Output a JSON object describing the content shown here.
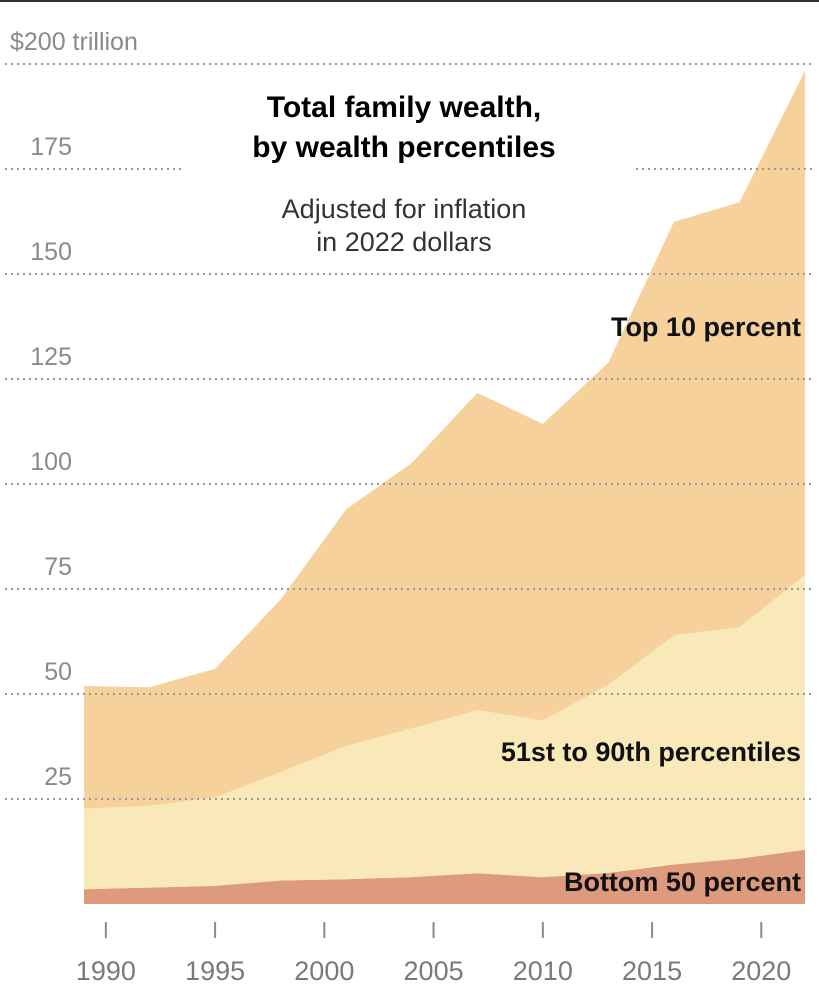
{
  "chart_data": {
    "type": "area",
    "stacked": true,
    "title_lines": [
      "Total family wealth,",
      "by wealth percentiles"
    ],
    "subtitle_lines": [
      "Adjusted for inflation",
      "in 2022 dollars"
    ],
    "y_unit_label": "$200 trillion",
    "ylim": [
      0,
      200
    ],
    "xlim": [
      1989,
      2022
    ],
    "yticks": [
      {
        "value": 200,
        "label": "$200 trillion"
      },
      {
        "value": 175,
        "label": "175"
      },
      {
        "value": 150,
        "label": "150"
      },
      {
        "value": 125,
        "label": "125"
      },
      {
        "value": 100,
        "label": "100"
      },
      {
        "value": 75,
        "label": "75"
      },
      {
        "value": 50,
        "label": "50"
      },
      {
        "value": 25,
        "label": "25"
      }
    ],
    "xticks": [
      1990,
      1995,
      2000,
      2005,
      2010,
      2015,
      2020
    ],
    "grid": "horizontal dotted",
    "x": [
      1989,
      1992,
      1995,
      1998,
      2001,
      2004,
      2007,
      2010,
      2013,
      2016,
      2019,
      2022
    ],
    "series": [
      {
        "name": "Bottom 50 percent",
        "color": "#dd9a7c",
        "values": [
          3.5,
          3.9,
          4.3,
          5.6,
          5.9,
          6.4,
          7.3,
          6.4,
          7.4,
          9.4,
          10.8,
          12.9
        ]
      },
      {
        "name": "51st to 90th percentiles",
        "color": "#f9e9b8",
        "values": [
          19.2,
          19.5,
          21.1,
          25.8,
          31.7,
          35.4,
          38.9,
          37.3,
          44.8,
          54.6,
          55.1,
          65.5
        ]
      },
      {
        "name": "Top 10 percent",
        "color": "#f6d19c",
        "values": [
          29.2,
          28.2,
          30.6,
          41.1,
          56.4,
          63.2,
          75.5,
          70.6,
          76.7,
          98.4,
          101.2,
          120.0
        ]
      }
    ]
  }
}
